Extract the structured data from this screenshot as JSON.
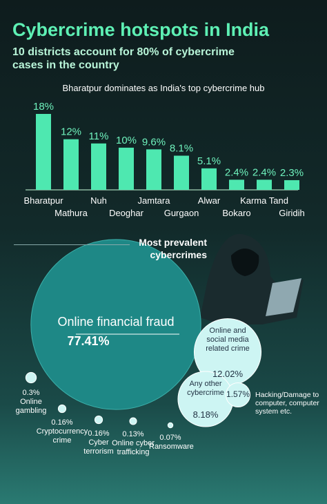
{
  "header": {
    "title": "Cybercrime hotspots in India",
    "subtitle": "10 districts account for 80% of cybercrime cases in the country"
  },
  "chart_data": [
    {
      "type": "bar",
      "title": "Bharatpur dominates as India's top cybercrime hub",
      "categories": [
        "Bharatpur",
        "Mathura",
        "Nuh",
        "Deoghar",
        "Jamtara",
        "Gurgaon",
        "Alwar",
        "Bokaro",
        "Karma Tand",
        "Giridih"
      ],
      "values": [
        18,
        12,
        11,
        10,
        9.6,
        8.1,
        5.1,
        2.4,
        2.4,
        2.3
      ],
      "value_labels": [
        "18%",
        "12%",
        "11%",
        "10%",
        "9.6%",
        "8.1%",
        "5.1%",
        "2.4%",
        "2.4%",
        "2.3%"
      ],
      "color": "#4ee8b0"
    },
    {
      "type": "bubble",
      "title": "Most prevalent cybercrimes",
      "categories": [
        "Online financial fraud",
        "Online and social media related crime",
        "Any other cybercrime",
        "Hacking/Damage to computer, computer system etc.",
        "Online gambling",
        "Cryptocurrency crime",
        "Cyber terrorism",
        "Online cyber trafficking",
        "Ransomware"
      ],
      "values": [
        77.41,
        12.02,
        8.18,
        1.57,
        0.3,
        0.16,
        0.16,
        0.13,
        0.07
      ],
      "value_labels": [
        "77.41%",
        "12.02%",
        "8.18%",
        "1.57%",
        "0.3%",
        "0.16%",
        "0.16%",
        "0.13%",
        "0.07%"
      ],
      "color": "#cdf5f3"
    }
  ]
}
